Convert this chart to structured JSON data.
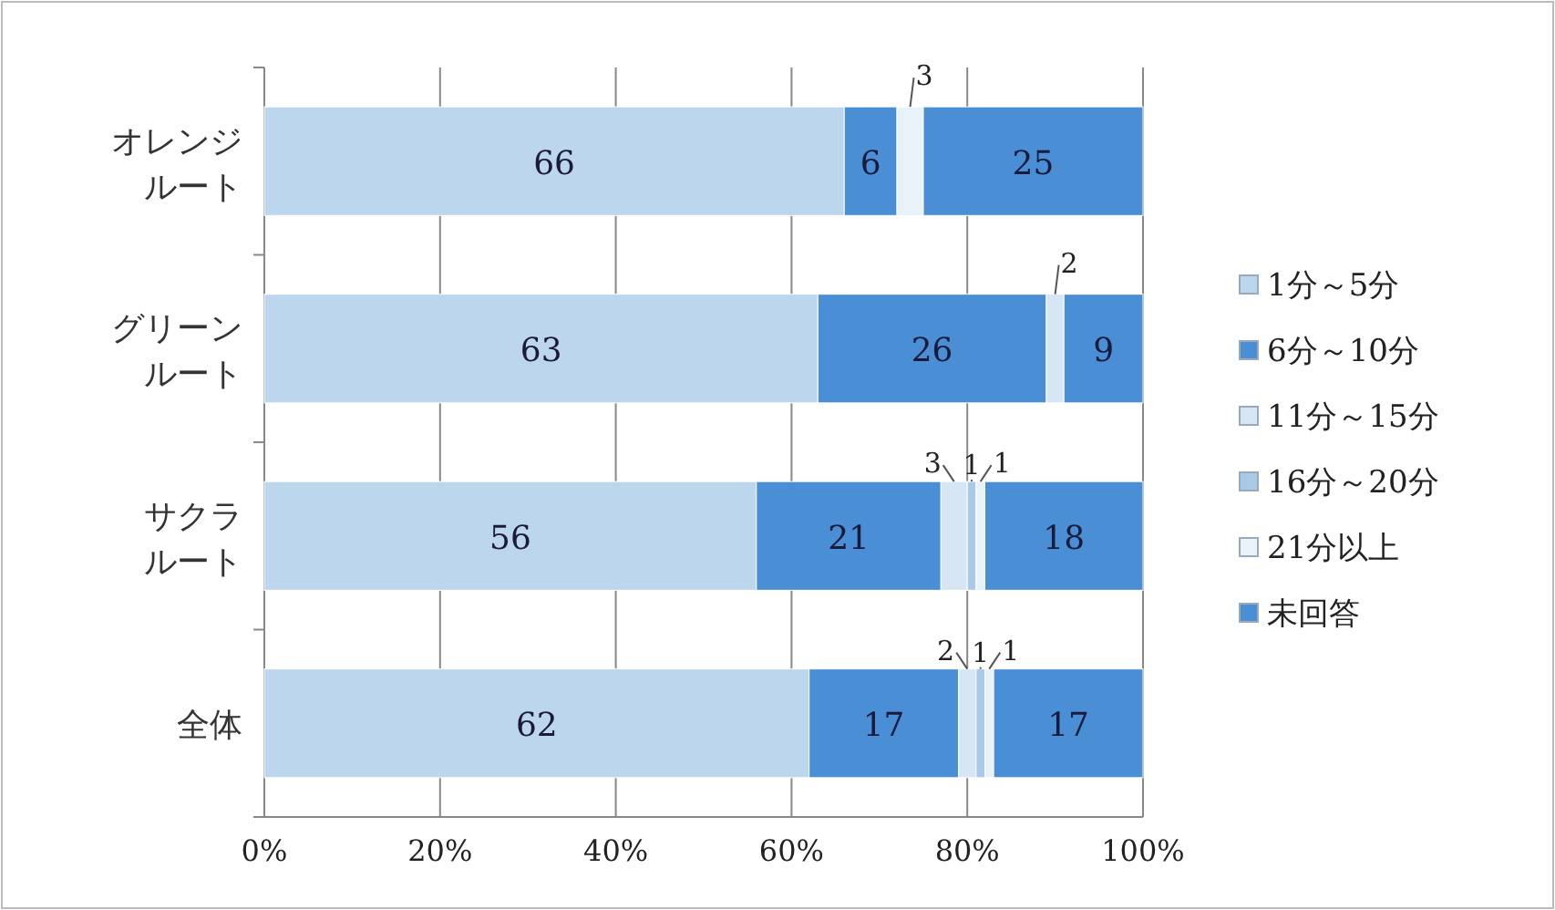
{
  "chart_data": {
    "type": "bar",
    "orientation": "horizontal",
    "stacked": true,
    "categories": [
      "オレンジルート",
      "グリーンルート",
      "サクラルート",
      "全体"
    ],
    "series": [
      {
        "name": "1分～5分",
        "color": "#bcd6ee",
        "values": [
          66,
          63,
          56,
          62
        ]
      },
      {
        "name": "6分～10分",
        "color": "#4a8ed6",
        "values": [
          6,
          26,
          21,
          17
        ]
      },
      {
        "name": "11分～15分",
        "color": "#d6e6f4",
        "values": [
          null,
          2,
          3,
          2
        ]
      },
      {
        "name": "16分～20分",
        "color": "#a9c9e9",
        "values": [
          null,
          null,
          1,
          1
        ]
      },
      {
        "name": "21分以上",
        "color": "#e9f1f9",
        "values": [
          3,
          null,
          1,
          1
        ]
      },
      {
        "name": "未回答",
        "color": "#4a8ed6",
        "values": [
          25,
          9,
          18,
          17
        ]
      }
    ],
    "xlim": [
      0,
      100
    ],
    "xticks": [
      {
        "value": 0,
        "label": "0%"
      },
      {
        "value": 20,
        "label": "20%"
      },
      {
        "value": 40,
        "label": "40%"
      },
      {
        "value": 60,
        "label": "60%"
      },
      {
        "value": 80,
        "label": "80%"
      },
      {
        "value": 100,
        "label": "100%"
      }
    ],
    "grid": "x",
    "legend": "right",
    "data_labels": true
  }
}
